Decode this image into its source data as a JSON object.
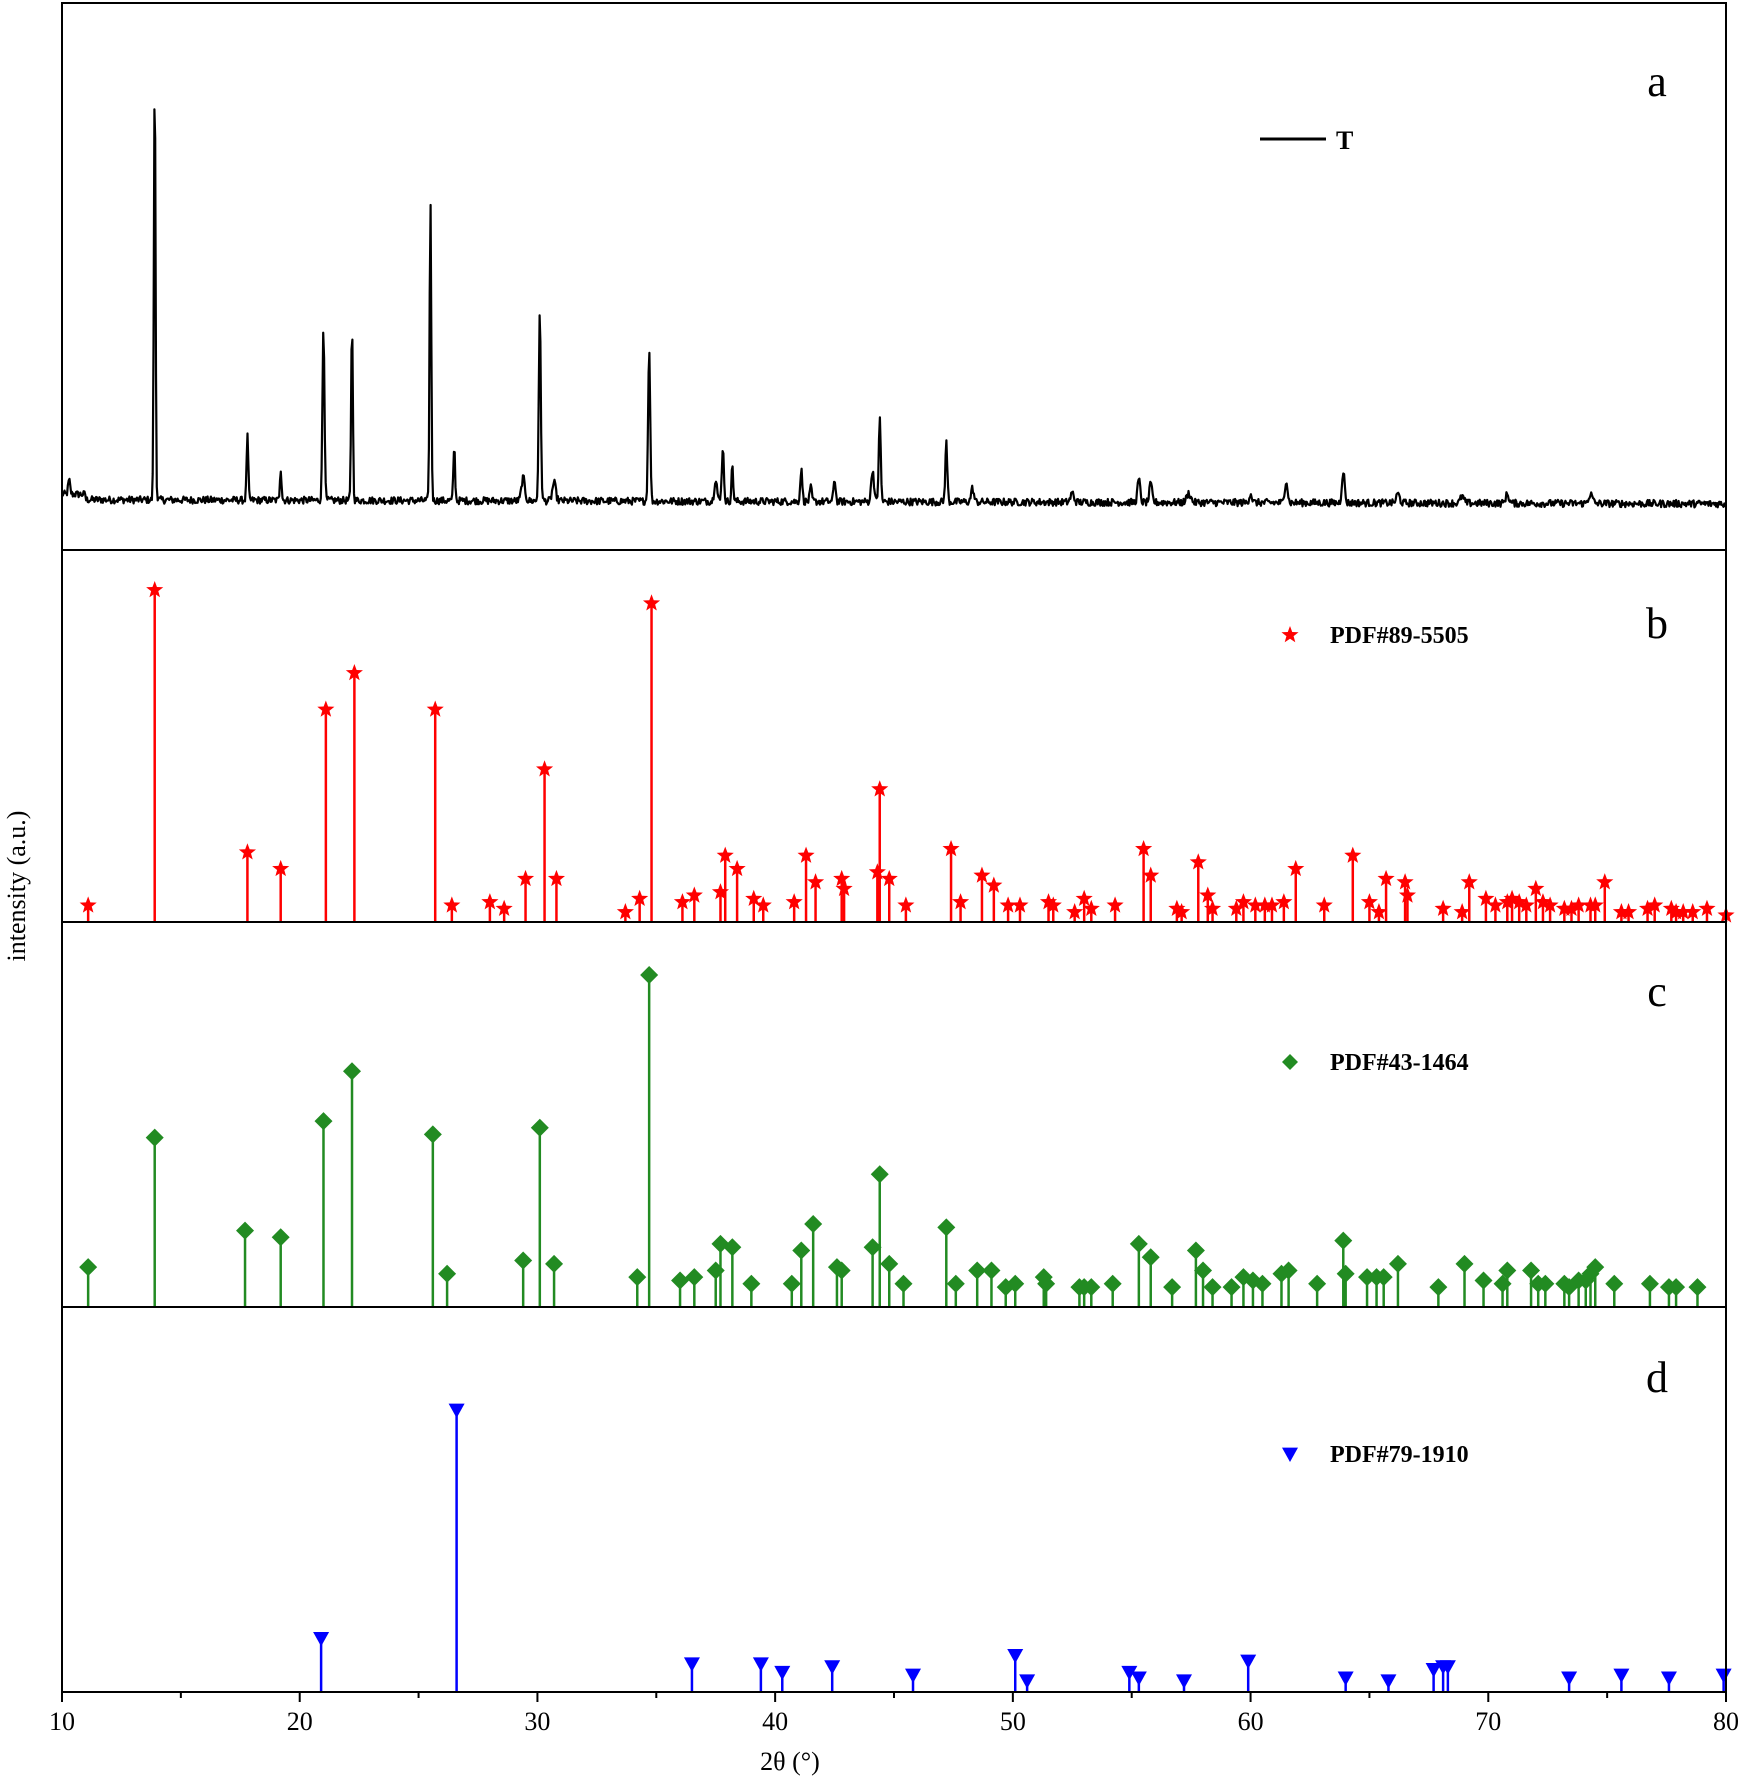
{
  "chart_data": {
    "type": "line",
    "xlabel": "2θ (°)",
    "ylabel": "intensity (a.u.)",
    "xlim": [
      10,
      80
    ],
    "xticks": [
      "10",
      "20",
      "30",
      "40",
      "50",
      "60",
      "70",
      "80"
    ],
    "panels": [
      {
        "label": "a",
        "kind": "line",
        "series_name": "T",
        "color": "#000000",
        "ylim": [
          0,
          100
        ],
        "peaks": [
          {
            "x": 10.3,
            "h": 3,
            "w": 0.06
          },
          {
            "x": 13.9,
            "h": 93,
            "w": 0.05
          },
          {
            "x": 17.8,
            "h": 14,
            "w": 0.05
          },
          {
            "x": 19.2,
            "h": 7,
            "w": 0.05
          },
          {
            "x": 21.0,
            "h": 38,
            "w": 0.06
          },
          {
            "x": 22.2,
            "h": 39,
            "w": 0.05
          },
          {
            "x": 25.5,
            "h": 65,
            "w": 0.05
          },
          {
            "x": 26.5,
            "h": 12,
            "w": 0.05
          },
          {
            "x": 29.4,
            "h": 5,
            "w": 0.1
          },
          {
            "x": 30.1,
            "h": 41,
            "w": 0.06
          },
          {
            "x": 30.7,
            "h": 4,
            "w": 0.1
          },
          {
            "x": 34.7,
            "h": 34,
            "w": 0.06
          },
          {
            "x": 37.5,
            "h": 5,
            "w": 0.08
          },
          {
            "x": 37.8,
            "h": 12,
            "w": 0.06
          },
          {
            "x": 38.2,
            "h": 8,
            "w": 0.05
          },
          {
            "x": 41.1,
            "h": 7,
            "w": 0.06
          },
          {
            "x": 41.5,
            "h": 3,
            "w": 0.06
          },
          {
            "x": 42.5,
            "h": 5,
            "w": 0.06
          },
          {
            "x": 44.1,
            "h": 7,
            "w": 0.08
          },
          {
            "x": 44.4,
            "h": 18,
            "w": 0.06
          },
          {
            "x": 47.2,
            "h": 13,
            "w": 0.06
          },
          {
            "x": 48.3,
            "h": 3,
            "w": 0.08
          },
          {
            "x": 52.5,
            "h": 2,
            "w": 0.1
          },
          {
            "x": 55.3,
            "h": 5,
            "w": 0.08
          },
          {
            "x": 55.8,
            "h": 4,
            "w": 0.08
          },
          {
            "x": 57.4,
            "h": 2,
            "w": 0.12
          },
          {
            "x": 60.0,
            "h": 2,
            "w": 0.08
          },
          {
            "x": 61.5,
            "h": 5,
            "w": 0.08
          },
          {
            "x": 63.9,
            "h": 7,
            "w": 0.08
          },
          {
            "x": 66.2,
            "h": 2,
            "w": 0.1
          },
          {
            "x": 68.9,
            "h": 1.5,
            "w": 0.1
          },
          {
            "x": 70.8,
            "h": 2,
            "w": 0.1
          },
          {
            "x": 74.3,
            "h": 2,
            "w": 0.12
          }
        ]
      },
      {
        "label": "b",
        "kind": "stick",
        "series_name": "PDF#89-5505",
        "marker": "star",
        "color": "#ff0000",
        "ylim": [
          0,
          100
        ],
        "x": [
          11.1,
          13.9,
          17.8,
          19.2,
          21.1,
          22.3,
          25.7,
          26.4,
          28.0,
          28.6,
          29.5,
          30.3,
          30.8,
          33.7,
          34.3,
          34.8,
          36.1,
          36.6,
          37.7,
          37.9,
          38.4,
          39.1,
          39.5,
          40.8,
          41.3,
          41.7,
          42.8,
          42.9,
          44.3,
          44.4,
          44.8,
          45.5,
          47.4,
          47.8,
          48.7,
          49.2,
          49.8,
          50.3,
          51.5,
          51.7,
          52.6,
          53.0,
          53.3,
          54.3,
          55.5,
          55.8,
          56.9,
          57.1,
          57.8,
          58.2,
          58.4,
          59.4,
          59.7,
          60.2,
          60.6,
          60.9,
          61.4,
          61.9,
          63.1,
          64.3,
          65.0,
          65.4,
          65.7,
          66.5,
          66.6,
          68.1,
          68.9,
          69.2,
          69.9,
          70.3,
          70.8,
          71.0,
          71.3,
          71.6,
          72.0,
          72.3,
          72.6,
          73.2,
          73.5,
          73.8,
          74.3,
          74.5,
          74.9,
          75.6,
          75.9,
          76.7,
          77.0,
          77.7,
          77.9,
          78.2,
          78.6,
          79.2,
          80.0
        ],
        "y": [
          5,
          100,
          21,
          16,
          64,
          75,
          64,
          5,
          6,
          4,
          13,
          46,
          13,
          3,
          7,
          96,
          6,
          8,
          9,
          20,
          16,
          7,
          5,
          6,
          20,
          12,
          13,
          10,
          15,
          40,
          13,
          5,
          22,
          6,
          14,
          11,
          5,
          5,
          6,
          5,
          3,
          7,
          4,
          5,
          22,
          14,
          4,
          3,
          18,
          8,
          4,
          4,
          6,
          5,
          5,
          5,
          6,
          16,
          5,
          20,
          6,
          3,
          13,
          12,
          8,
          4,
          3,
          12,
          7,
          5,
          6,
          7,
          6,
          5,
          10,
          6,
          5,
          4,
          4,
          5,
          5,
          5,
          12,
          3,
          3,
          4,
          5,
          4,
          3,
          3,
          3,
          4,
          2
        ]
      },
      {
        "label": "c",
        "kind": "stick",
        "series_name": "PDF#43-1464",
        "marker": "diamond",
        "color": "#228b22",
        "ylim": [
          0,
          100
        ],
        "x": [
          11.1,
          13.9,
          17.7,
          19.2,
          21.0,
          22.2,
          25.6,
          26.2,
          29.4,
          30.1,
          30.7,
          34.2,
          34.7,
          36.0,
          36.6,
          37.5,
          37.7,
          38.2,
          39.0,
          40.7,
          41.1,
          41.6,
          42.6,
          42.8,
          44.1,
          44.4,
          44.8,
          45.4,
          47.2,
          47.6,
          48.5,
          49.1,
          49.7,
          50.1,
          51.3,
          51.4,
          52.8,
          53.0,
          53.3,
          54.2,
          55.3,
          55.8,
          56.7,
          57.7,
          58.0,
          58.4,
          59.2,
          59.7,
          60.1,
          60.5,
          61.3,
          61.6,
          62.8,
          63.9,
          64.0,
          64.9,
          65.3,
          65.6,
          66.2,
          67.9,
          69.0,
          69.8,
          70.6,
          70.8,
          71.8,
          72.1,
          72.4,
          73.2,
          73.4,
          73.8,
          74.1,
          74.3,
          74.5,
          75.3,
          76.8,
          77.6,
          77.9,
          78.8
        ],
        "y": [
          12,
          51,
          23,
          21,
          56,
          71,
          52,
          10,
          14,
          54,
          13,
          9,
          100,
          8,
          9,
          11,
          19,
          18,
          7,
          7,
          17,
          25,
          12,
          11,
          18,
          40,
          13,
          7,
          24,
          7,
          11,
          11,
          6,
          7,
          9,
          7,
          6,
          6,
          6,
          7,
          19,
          15,
          6,
          17,
          11,
          6,
          6,
          9,
          8,
          7,
          10,
          11,
          7,
          20,
          10,
          9,
          9,
          9,
          13,
          6,
          13,
          8,
          7,
          11,
          11,
          7,
          7,
          7,
          6,
          8,
          8,
          10,
          12,
          7,
          7,
          6,
          6,
          6
        ]
      },
      {
        "label": "d",
        "kind": "stick",
        "series_name": "PDF#79-1910",
        "marker": "triangle-down",
        "color": "#0000ff",
        "ylim": [
          0,
          100
        ],
        "x": [
          20.9,
          26.6,
          36.5,
          39.4,
          40.3,
          42.4,
          45.8,
          50.1,
          50.6,
          54.9,
          55.3,
          57.2,
          59.9,
          64.0,
          65.8,
          67.7,
          68.1,
          68.3,
          73.4,
          75.6,
          77.6,
          79.9
        ],
        "y": [
          19,
          100,
          10,
          10,
          7,
          9,
          6,
          13,
          4,
          7,
          5,
          4,
          11,
          5,
          4,
          8,
          9,
          9,
          5,
          6,
          5,
          6
        ]
      }
    ]
  }
}
